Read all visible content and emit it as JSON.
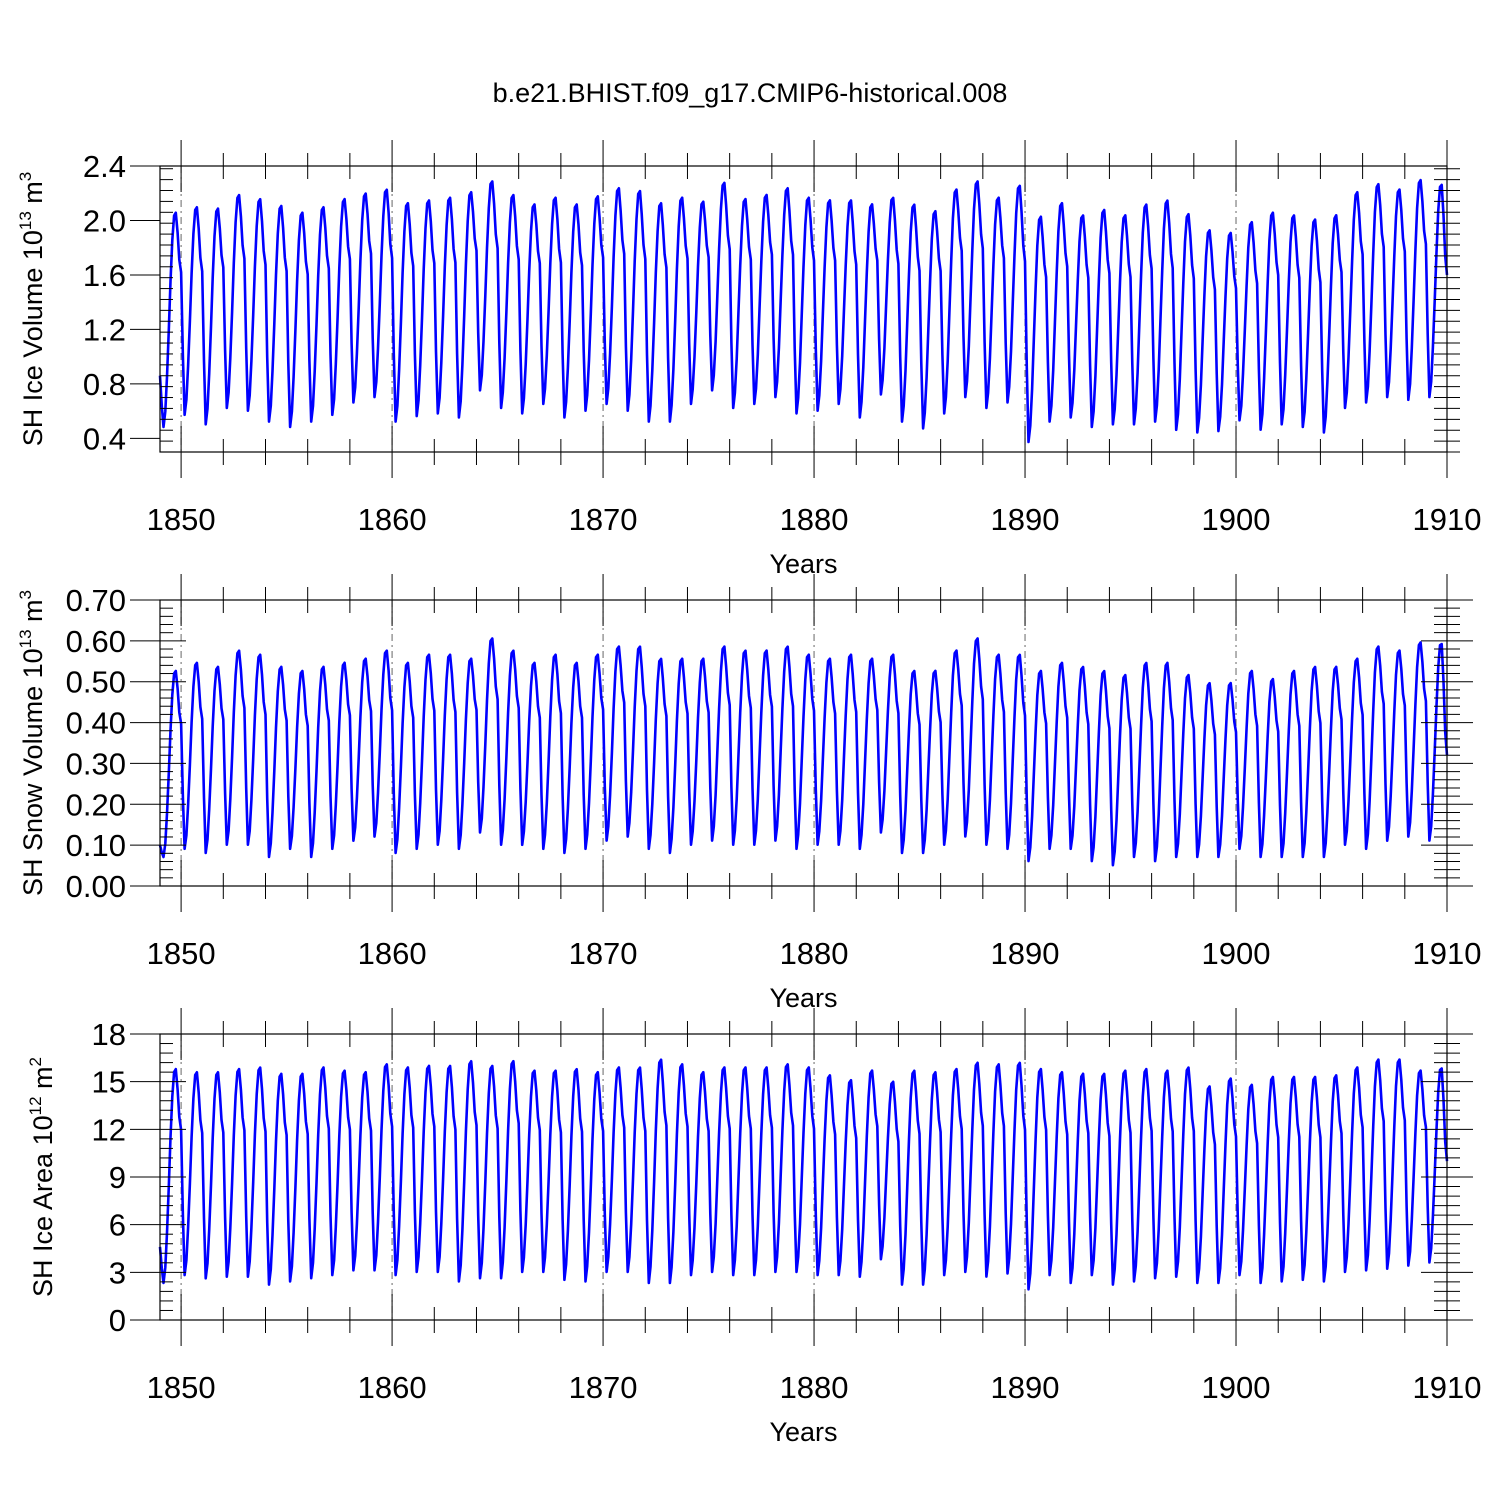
{
  "title": "b.e21.BHIST.f09_g17.CMIP6-historical.008",
  "colors": {
    "series": "#0000ff",
    "axes": "#000000",
    "grid": "#666666"
  },
  "chart_data": [
    {
      "type": "line",
      "title": "b.e21.BHIST.f09_g17.CMIP6-historical.008",
      "xlabel": "Years",
      "ylabel": {
        "text": "SH Ice Volume 10",
        "exp": "13",
        "unit": " m",
        "unit_exp": "3"
      },
      "xlim": [
        1849,
        1910
      ],
      "ylim": [
        0.3,
        2.4
      ],
      "yticks": [
        0.4,
        0.8,
        1.2,
        1.6,
        2.0,
        2.4
      ],
      "ytick_labels": [
        "0.4",
        "0.8",
        "1.2",
        "1.6",
        "2.0",
        "2.4"
      ],
      "xticks": [
        1850,
        1860,
        1870,
        1880,
        1890,
        1900,
        1910
      ],
      "xtick_labels": [
        "1850",
        "1860",
        "1870",
        "1880",
        "1890",
        "1900",
        "1910"
      ],
      "grid": "vertical dashed at decades",
      "series": [
        {
          "years": [
            1849,
            1850,
            1851,
            1852,
            1853,
            1854,
            1855,
            1856,
            1857,
            1858,
            1859,
            1860,
            1861,
            1862,
            1863,
            1864,
            1865,
            1866,
            1867,
            1868,
            1869,
            1870,
            1871,
            1872,
            1873,
            1874,
            1875,
            1876,
            1877,
            1878,
            1879,
            1880,
            1881,
            1882,
            1883,
            1884,
            1885,
            1886,
            1887,
            1888,
            1889,
            1890,
            1891,
            1892,
            1893,
            1894,
            1895,
            1896,
            1897,
            1898,
            1899,
            1900,
            1901,
            1902,
            1903,
            1904,
            1905,
            1906,
            1907,
            1908,
            1909
          ],
          "annual_max": [
            2.07,
            2.11,
            2.1,
            2.2,
            2.17,
            2.12,
            2.07,
            2.11,
            2.17,
            2.21,
            2.24,
            2.14,
            2.16,
            2.18,
            2.22,
            2.3,
            2.2,
            2.13,
            2.18,
            2.13,
            2.19,
            2.25,
            2.23,
            2.14,
            2.18,
            2.15,
            2.29,
            2.17,
            2.2,
            2.25,
            2.18,
            2.16,
            2.16,
            2.13,
            2.18,
            2.13,
            2.08,
            2.24,
            2.3,
            2.18,
            2.27,
            2.04,
            2.14,
            2.05,
            2.09,
            2.05,
            2.13,
            2.16,
            2.06,
            1.94,
            1.92,
            2.0,
            2.07,
            2.05,
            2.02,
            2.05,
            2.22,
            2.28,
            2.24,
            2.31,
            2.28
          ],
          "annual_min": [
            0.48,
            0.57,
            0.5,
            0.62,
            0.6,
            0.52,
            0.48,
            0.52,
            0.57,
            0.66,
            0.7,
            0.52,
            0.56,
            0.58,
            0.55,
            0.75,
            0.62,
            0.58,
            0.65,
            0.55,
            0.6,
            0.65,
            0.6,
            0.52,
            0.52,
            0.65,
            0.75,
            0.62,
            0.65,
            0.7,
            0.58,
            0.6,
            0.65,
            0.55,
            0.72,
            0.52,
            0.47,
            0.58,
            0.7,
            0.62,
            0.66,
            0.37,
            0.52,
            0.55,
            0.48,
            0.5,
            0.5,
            0.52,
            0.46,
            0.44,
            0.45,
            0.53,
            0.46,
            0.5,
            0.48,
            0.44,
            0.62,
            0.66,
            0.7,
            0.68,
            0.7
          ],
          "start_value": 0.86,
          "end_value": 1.6
        }
      ]
    },
    {
      "type": "line",
      "xlabel": "Years",
      "ylabel": {
        "text": "SH Snow Volume 10",
        "exp": "13",
        "unit": " m",
        "unit_exp": "3"
      },
      "xlim": [
        1849,
        1910
      ],
      "ylim": [
        0.0,
        0.7
      ],
      "yticks": [
        0.0,
        0.1,
        0.2,
        0.3,
        0.4,
        0.5,
        0.6,
        0.7
      ],
      "ytick_labels": [
        "0.00",
        "0.10",
        "0.20",
        "0.30",
        "0.40",
        "0.50",
        "0.60",
        "0.70"
      ],
      "xticks": [
        1850,
        1860,
        1870,
        1880,
        1890,
        1900,
        1910
      ],
      "xtick_labels": [
        "1850",
        "1860",
        "1870",
        "1880",
        "1890",
        "1900",
        "1910"
      ],
      "grid": "vertical dashed at decades",
      "series": [
        {
          "years": [
            1849,
            1850,
            1851,
            1852,
            1853,
            1854,
            1855,
            1856,
            1857,
            1858,
            1859,
            1860,
            1861,
            1862,
            1863,
            1864,
            1865,
            1866,
            1867,
            1868,
            1869,
            1870,
            1871,
            1872,
            1873,
            1874,
            1875,
            1876,
            1877,
            1878,
            1879,
            1880,
            1881,
            1882,
            1883,
            1884,
            1885,
            1886,
            1887,
            1888,
            1889,
            1890,
            1891,
            1892,
            1893,
            1894,
            1895,
            1896,
            1897,
            1898,
            1899,
            1900,
            1901,
            1902,
            1903,
            1904,
            1905,
            1906,
            1907,
            1908,
            1909
          ],
          "annual_max": [
            0.53,
            0.55,
            0.54,
            0.58,
            0.57,
            0.54,
            0.53,
            0.54,
            0.55,
            0.56,
            0.58,
            0.55,
            0.57,
            0.57,
            0.56,
            0.61,
            0.58,
            0.55,
            0.57,
            0.55,
            0.57,
            0.59,
            0.59,
            0.56,
            0.56,
            0.56,
            0.59,
            0.58,
            0.58,
            0.59,
            0.57,
            0.56,
            0.57,
            0.56,
            0.57,
            0.53,
            0.53,
            0.58,
            0.61,
            0.57,
            0.57,
            0.53,
            0.55,
            0.54,
            0.53,
            0.52,
            0.55,
            0.55,
            0.52,
            0.5,
            0.5,
            0.53,
            0.51,
            0.53,
            0.54,
            0.54,
            0.56,
            0.59,
            0.58,
            0.6,
            0.6
          ],
          "annual_min": [
            0.07,
            0.09,
            0.08,
            0.1,
            0.1,
            0.07,
            0.09,
            0.07,
            0.09,
            0.11,
            0.12,
            0.08,
            0.09,
            0.1,
            0.09,
            0.13,
            0.1,
            0.1,
            0.09,
            0.08,
            0.09,
            0.11,
            0.12,
            0.09,
            0.08,
            0.1,
            0.11,
            0.1,
            0.1,
            0.11,
            0.09,
            0.1,
            0.1,
            0.09,
            0.13,
            0.08,
            0.08,
            0.1,
            0.12,
            0.1,
            0.09,
            0.06,
            0.09,
            0.09,
            0.06,
            0.05,
            0.07,
            0.06,
            0.07,
            0.07,
            0.07,
            0.09,
            0.07,
            0.07,
            0.07,
            0.07,
            0.1,
            0.09,
            0.11,
            0.12,
            0.11
          ],
          "start_value": 0.1,
          "end_value": 0.32
        }
      ]
    },
    {
      "type": "line",
      "xlabel": "Years",
      "ylabel": {
        "text": "SH Ice Area 10",
        "exp": "12",
        "unit": " m",
        "unit_exp": "2"
      },
      "xlim": [
        1849,
        1910
      ],
      "ylim": [
        0,
        18
      ],
      "yticks": [
        0,
        3,
        6,
        9,
        12,
        15,
        18
      ],
      "ytick_labels": [
        "0",
        "3",
        "6",
        "9",
        "12",
        "15",
        "18"
      ],
      "xticks": [
        1850,
        1860,
        1870,
        1880,
        1890,
        1900,
        1910
      ],
      "xtick_labels": [
        "1850",
        "1860",
        "1870",
        "1880",
        "1890",
        "1900",
        "1910"
      ],
      "grid": "vertical dashed at decades",
      "series": [
        {
          "years": [
            1849,
            1850,
            1851,
            1852,
            1853,
            1854,
            1855,
            1856,
            1857,
            1858,
            1859,
            1860,
            1861,
            1862,
            1863,
            1864,
            1865,
            1866,
            1867,
            1868,
            1869,
            1870,
            1871,
            1872,
            1873,
            1874,
            1875,
            1876,
            1877,
            1878,
            1879,
            1880,
            1881,
            1882,
            1883,
            1884,
            1885,
            1886,
            1887,
            1888,
            1889,
            1890,
            1891,
            1892,
            1893,
            1894,
            1895,
            1896,
            1897,
            1898,
            1899,
            1900,
            1901,
            1902,
            1903,
            1904,
            1905,
            1906,
            1907,
            1908,
            1909
          ],
          "annual_max": [
            15.9,
            15.7,
            15.7,
            15.9,
            16.0,
            15.6,
            15.6,
            16.0,
            15.8,
            15.7,
            16.2,
            16.0,
            16.1,
            16.1,
            16.4,
            16.1,
            16.4,
            15.8,
            15.8,
            15.9,
            15.7,
            16.0,
            16.0,
            16.5,
            16.2,
            15.7,
            16.0,
            16.0,
            16.0,
            16.2,
            16.0,
            15.5,
            15.2,
            15.8,
            15.1,
            15.8,
            15.7,
            15.9,
            16.3,
            16.2,
            16.3,
            15.9,
            15.7,
            15.6,
            15.6,
            15.8,
            15.9,
            15.8,
            16.0,
            14.8,
            15.3,
            14.9,
            15.4,
            15.4,
            15.4,
            15.5,
            16.0,
            16.5,
            16.5,
            15.8,
            16.0
          ],
          "annual_max_note": "",
          "annual_min": [
            2.3,
            2.8,
            2.6,
            2.7,
            2.7,
            2.2,
            2.4,
            2.6,
            2.8,
            3.1,
            3.1,
            2.8,
            3.0,
            3.0,
            2.4,
            2.6,
            2.6,
            3.0,
            3.0,
            2.5,
            2.4,
            3.0,
            3.0,
            2.3,
            2.3,
            2.8,
            3.0,
            2.8,
            2.8,
            3.0,
            3.0,
            2.8,
            2.8,
            2.7,
            3.8,
            2.2,
            2.2,
            2.8,
            3.0,
            2.7,
            2.9,
            1.9,
            2.8,
            2.3,
            2.8,
            2.2,
            2.4,
            2.6,
            2.7,
            2.3,
            2.3,
            2.8,
            2.3,
            2.4,
            2.5,
            2.4,
            3.0,
            3.1,
            3.2,
            3.4,
            3.6
          ],
          "start_value": 4.6,
          "end_value": 10.0
        }
      ]
    }
  ]
}
